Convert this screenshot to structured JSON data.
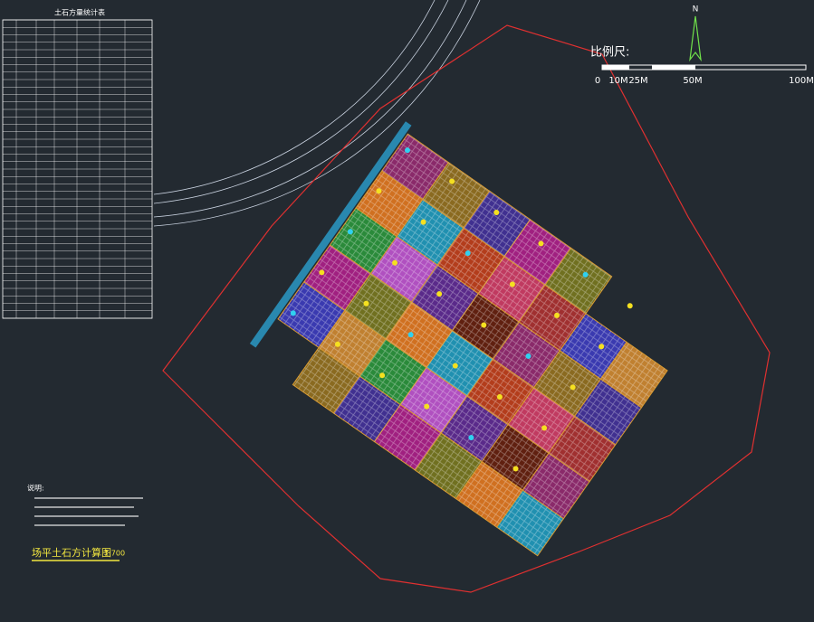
{
  "table": {
    "title": "土石方量统计表"
  },
  "scale": {
    "title": "比例尺:",
    "labels": [
      "0",
      "10M",
      "25M",
      "50M",
      "100M"
    ]
  },
  "north": "N",
  "notes": {
    "heading": "说明:"
  },
  "drawing": {
    "title": "场平土石方计算图",
    "scale": "1:700"
  }
}
